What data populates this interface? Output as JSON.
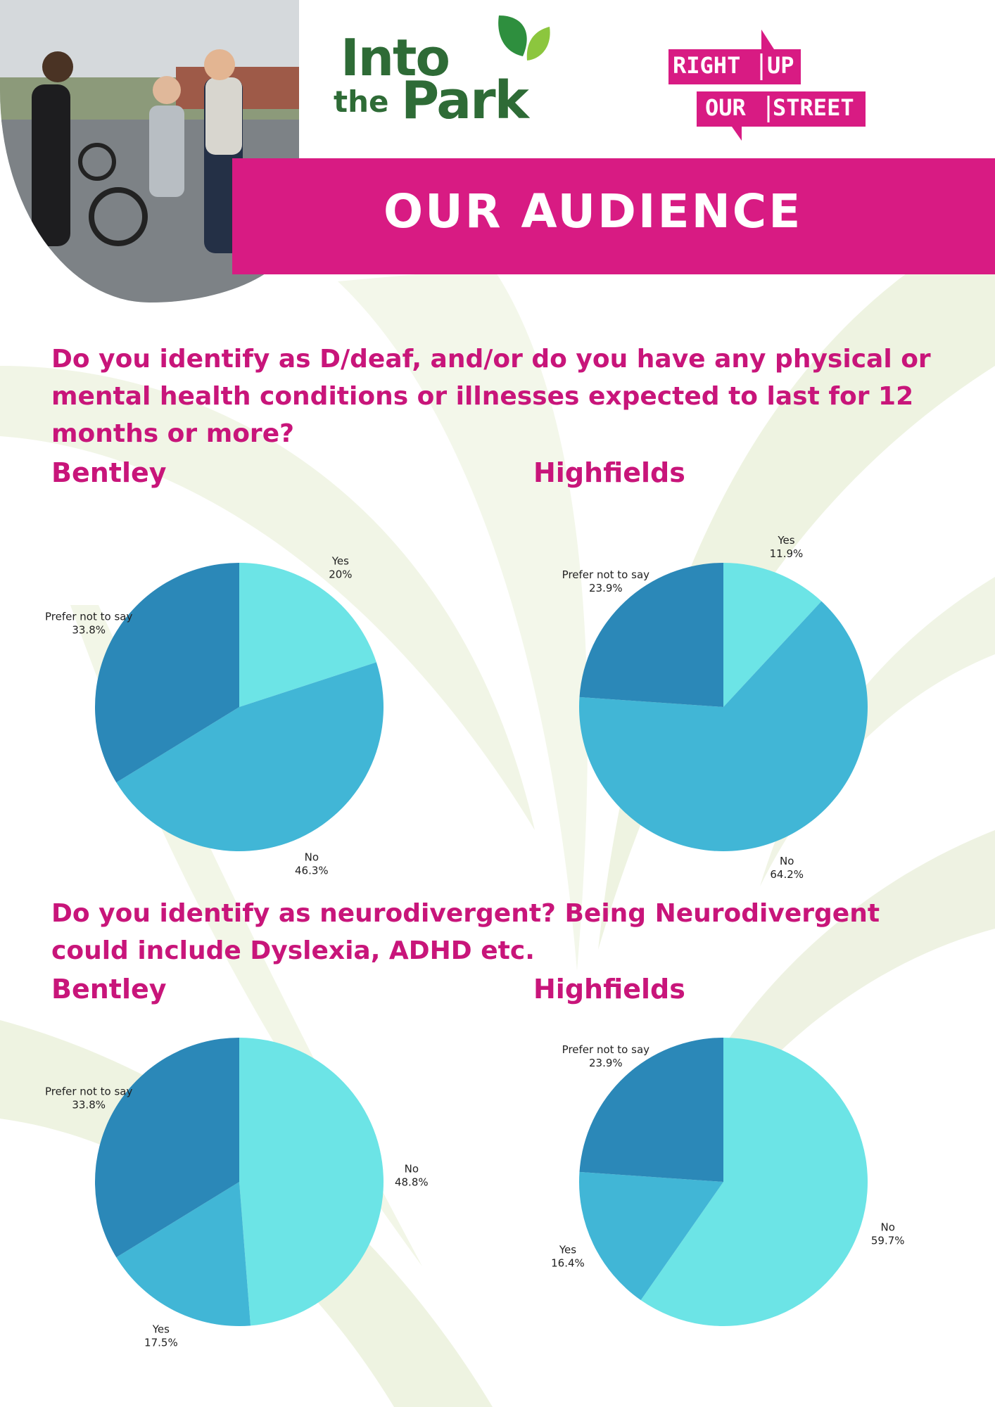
{
  "logos": {
    "into_the_park": {
      "line1": "Into",
      "line2_small": "the",
      "line2_large": "Park"
    },
    "right_up_our_street": {
      "words": [
        "RIGHT",
        "UP",
        "OUR",
        "STREET"
      ]
    }
  },
  "header": {
    "title": "OUR AUDIENCE"
  },
  "colors": {
    "brand_pink": "#d81b83",
    "heading_pink": "#c8157a",
    "logo_green": "#2e6b36",
    "pie_light": "#6ce4e6",
    "pie_mid": "#41b6d6",
    "pie_dark": "#2b88b8"
  },
  "sections": [
    {
      "question": "Do you identify as D/deaf, and/or do you have any physical or mental health conditions or illnesses expected to last for 12 months or more?"
    },
    {
      "question": "Do you identify as neurodivergent? Being Neurodivergent could include Dyslexia, ADHD etc."
    }
  ],
  "chart_data": [
    {
      "type": "pie",
      "title": "Bentley",
      "unit": "%",
      "slices": [
        {
          "label": "Yes",
          "value": 20,
          "value_text": "20%",
          "color": "#6ce4e6"
        },
        {
          "label": "No",
          "value": 46.3,
          "value_text": "46.3%",
          "color": "#41b6d6"
        },
        {
          "label": "Prefer not to say",
          "value": 33.8,
          "value_text": "33.8%",
          "color": "#2b88b8"
        }
      ]
    },
    {
      "type": "pie",
      "title": "Highfields",
      "unit": "%",
      "slices": [
        {
          "label": "Yes",
          "value": 11.9,
          "value_text": "11.9%",
          "color": "#6ce4e6"
        },
        {
          "label": "No",
          "value": 64.2,
          "value_text": "64.2%",
          "color": "#41b6d6"
        },
        {
          "label": "Prefer not to say",
          "value": 23.9,
          "value_text": "23.9%",
          "color": "#2b88b8"
        }
      ]
    },
    {
      "type": "pie",
      "title": "Bentley",
      "unit": "%",
      "slices": [
        {
          "label": "No",
          "value": 48.8,
          "value_text": "48.8%",
          "color": "#6ce4e6"
        },
        {
          "label": "Yes",
          "value": 17.5,
          "value_text": "17.5%",
          "color": "#41b6d6"
        },
        {
          "label": "Prefer not to say",
          "value": 33.8,
          "value_text": "33.8%",
          "color": "#2b88b8"
        }
      ]
    },
    {
      "type": "pie",
      "title": "Highfields",
      "unit": "%",
      "slices": [
        {
          "label": "No",
          "value": 59.7,
          "value_text": "59.7%",
          "color": "#6ce4e6"
        },
        {
          "label": "Yes",
          "value": 16.4,
          "value_text": "16.4%",
          "color": "#41b6d6"
        },
        {
          "label": "Prefer not to say",
          "value": 23.9,
          "value_text": "23.9%",
          "color": "#2b88b8"
        }
      ]
    }
  ]
}
